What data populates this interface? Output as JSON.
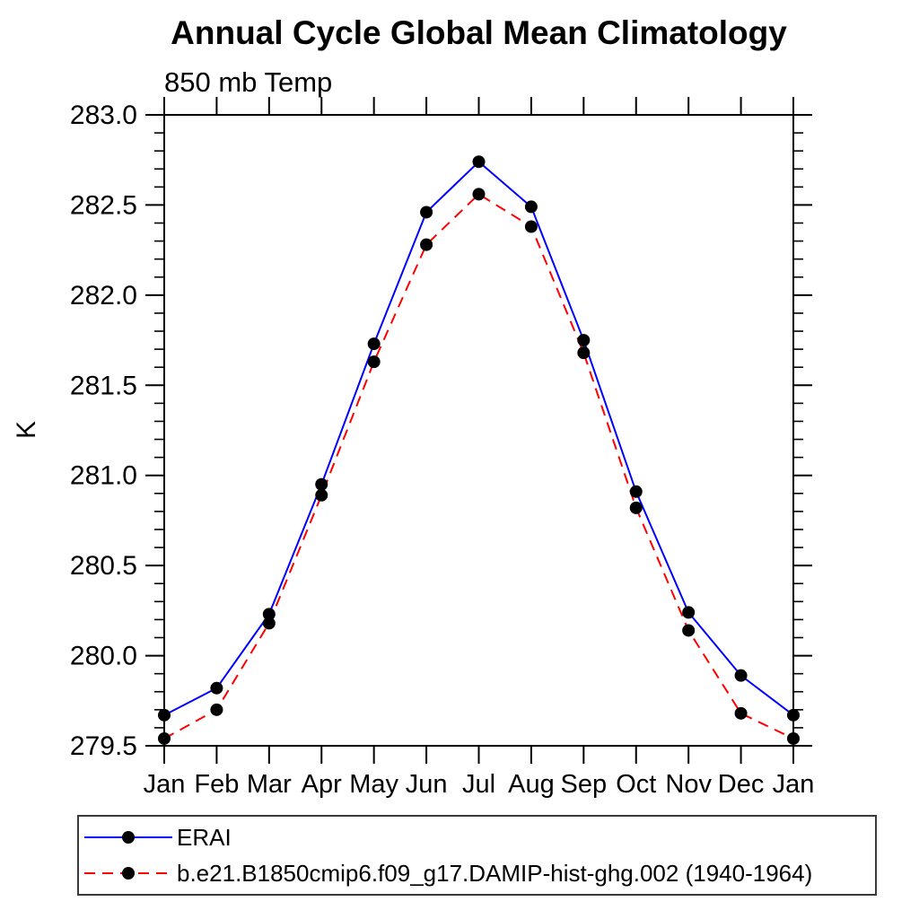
{
  "title": "Annual Cycle Global Mean Climatology",
  "chart_data": {
    "type": "line",
    "title": "Annual Cycle Global Mean Climatology",
    "subtitle": "850 mb Temp",
    "ylabel": "K",
    "xlabel": "",
    "categories": [
      "Jan",
      "Feb",
      "Mar",
      "Apr",
      "May",
      "Jun",
      "Jul",
      "Aug",
      "Sep",
      "Oct",
      "Nov",
      "Dec",
      "Jan"
    ],
    "ylim": [
      279.5,
      283.0
    ],
    "ytick_interval": 0.5,
    "yminor_interval": 0.1,
    "ytick_labels": [
      "279.5",
      "280.0",
      "280.5",
      "281.0",
      "281.5",
      "282.0",
      "282.5",
      "283.0"
    ],
    "grid": false,
    "legend_position": "bottom",
    "axis_color": "#000000",
    "marker_color": "#000000",
    "series": [
      {
        "name": "ERAI",
        "color": "#0000ff",
        "line_style": "solid",
        "values": [
          279.67,
          279.82,
          280.23,
          280.95,
          281.73,
          282.46,
          282.74,
          282.49,
          281.75,
          280.91,
          280.24,
          279.89,
          279.67
        ]
      },
      {
        "name": "b.e21.B1850cmip6.f09_g17.DAMIP-hist-ghg.002 (1940-1964)",
        "color": "#ff0000",
        "line_style": "dashed",
        "values": [
          279.54,
          279.7,
          280.18,
          280.89,
          281.63,
          282.28,
          282.56,
          282.38,
          281.68,
          280.82,
          280.14,
          279.68,
          279.54
        ]
      }
    ]
  }
}
